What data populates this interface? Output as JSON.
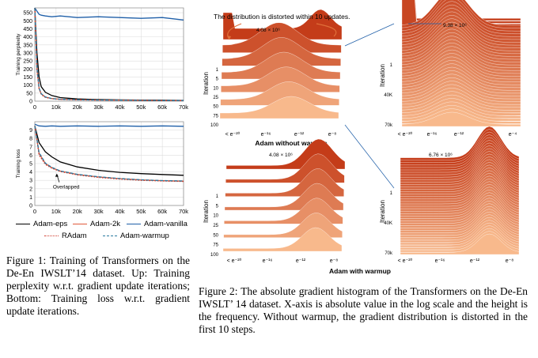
{
  "legend": {
    "items": [
      {
        "label": "Adam-eps",
        "color": "#000000",
        "style": "solid"
      },
      {
        "label": "Adam-2k",
        "color": "#e05a3a",
        "style": "solid"
      },
      {
        "label": "Adam-vanilla",
        "color": "#1f5fa8",
        "style": "solid"
      },
      {
        "label": "RAdam",
        "color": "#d0392c",
        "style": "dotted"
      },
      {
        "label": "Adam-warmup",
        "color": "#2a7aa0",
        "style": "dashed"
      }
    ]
  },
  "captions": {
    "figure1": "Figure 1: Training of Transformers on the De-En IWSLT’14 dataset. Up: Training perplexity w.r.t. gradient update iterations; Bottom: Training loss w.r.t. gradient update iterations.",
    "figure2": "Figure 2: The absolute gradient histogram of the Transformers on the De-En IWSLT’ 14 dataset. X-axis is absolute value in the log scale and the height is the frequency. Without warmup, the gradient distribution is distorted in the first 10 steps."
  },
  "histograms": {
    "annotation": "The distribution is distorted within 10 updates.",
    "xlabel_top": "Adam without warmup",
    "xlabel_bottom": "Adam with warmup",
    "ylabel": "Iteration",
    "panels": [
      {
        "peak_label": "4.08 × 10⁶",
        "ticks": [
          "< e⁻²⁰",
          "e⁻¹⁶",
          "e⁻¹²",
          "e⁻⁸"
        ],
        "iterations": [
          "1",
          "5",
          "10",
          "25",
          "50",
          "75",
          "100"
        ]
      },
      {
        "peak_label": "9.38 × 10⁶",
        "ticks": [
          "< e⁻²⁰",
          "e⁻¹⁶",
          "e⁻¹²",
          "e⁻⁸",
          "e⁻⁴"
        ],
        "iterations": [
          "1",
          "40K",
          "70k"
        ]
      },
      {
        "peak_label": "4.08 × 10⁶",
        "ticks": [
          "< e⁻²⁰",
          "e⁻¹⁶",
          "e⁻¹²",
          "e⁻⁸"
        ],
        "iterations": [
          "1",
          "5",
          "10",
          "25",
          "50",
          "75",
          "100"
        ]
      },
      {
        "peak_label": "6.76 × 10⁶",
        "ticks": [
          "< e⁻²⁰",
          "e⁻¹⁶",
          "e⁻¹²",
          "e⁻⁸"
        ],
        "iterations": [
          "1",
          "40K",
          "70k"
        ]
      }
    ]
  },
  "chart_data": [
    {
      "type": "line",
      "title": "",
      "xlabel": "",
      "ylabel": "Training perplexity",
      "xlim": [
        0,
        70000
      ],
      "ylim": [
        0,
        580
      ],
      "xticks": [
        "0",
        "10k",
        "20k",
        "30k",
        "40k",
        "50k",
        "60k",
        "70k"
      ],
      "yticks": [
        "0",
        "50",
        "100",
        "150",
        "200",
        "250",
        "300",
        "350",
        "400",
        "450",
        "500",
        "550"
      ],
      "grid": true,
      "x": [
        0,
        1000,
        2000,
        3000,
        5000,
        8000,
        12000,
        20000,
        30000,
        40000,
        50000,
        60000,
        70000
      ],
      "series": [
        {
          "name": "Adam-vanilla",
          "values": [
            580,
            560,
            540,
            535,
            530,
            525,
            530,
            520,
            525,
            520,
            515,
            520,
            505
          ]
        },
        {
          "name": "Adam-eps",
          "values": [
            580,
            300,
            150,
            90,
            55,
            35,
            22,
            14,
            10,
            8,
            7,
            6,
            5
          ]
        },
        {
          "name": "Adam-2k",
          "values": [
            580,
            200,
            80,
            45,
            25,
            16,
            12,
            9,
            7,
            6,
            5,
            4,
            4
          ]
        },
        {
          "name": "RAdam",
          "values": [
            580,
            190,
            75,
            42,
            23,
            15,
            11,
            8,
            7,
            6,
            5,
            4,
            4
          ]
        },
        {
          "name": "Adam-warmup",
          "values": [
            580,
            210,
            82,
            46,
            26,
            16,
            12,
            9,
            7,
            6,
            5,
            4,
            4
          ]
        }
      ]
    },
    {
      "type": "line",
      "title": "",
      "xlabel": "",
      "ylabel": "Training loss",
      "xlim": [
        0,
        70000
      ],
      "ylim": [
        0,
        10
      ],
      "xticks": [
        "0",
        "10k",
        "20k",
        "30k",
        "40k",
        "50k",
        "60k",
        "70k"
      ],
      "yticks": [
        "0",
        "1",
        "2",
        "3",
        "4",
        "5",
        "6",
        "7",
        "8",
        "9"
      ],
      "grid": true,
      "annotation": "Overlapped",
      "x": [
        0,
        2000,
        5000,
        8000,
        12000,
        20000,
        30000,
        40000,
        50000,
        60000,
        70000
      ],
      "series": [
        {
          "name": "Adam-vanilla",
          "values": [
            9.7,
            9.5,
            9.45,
            9.5,
            9.45,
            9.5,
            9.45,
            9.5,
            9.45,
            9.5,
            9.45
          ]
        },
        {
          "name": "Adam-eps",
          "values": [
            9.5,
            7.5,
            6.4,
            5.8,
            5.2,
            4.6,
            4.2,
            3.95,
            3.8,
            3.7,
            3.6
          ]
        },
        {
          "name": "Adam-2k",
          "values": [
            9.5,
            6.2,
            5.0,
            4.5,
            4.1,
            3.7,
            3.4,
            3.2,
            3.05,
            2.95,
            2.9
          ]
        },
        {
          "name": "RAdam",
          "values": [
            9.5,
            6.0,
            4.9,
            4.45,
            4.05,
            3.65,
            3.35,
            3.15,
            3.0,
            2.92,
            2.87
          ]
        },
        {
          "name": "Adam-warmup",
          "values": [
            9.5,
            6.3,
            5.05,
            4.55,
            4.12,
            3.72,
            3.42,
            3.22,
            3.07,
            2.97,
            2.92
          ]
        }
      ]
    }
  ]
}
